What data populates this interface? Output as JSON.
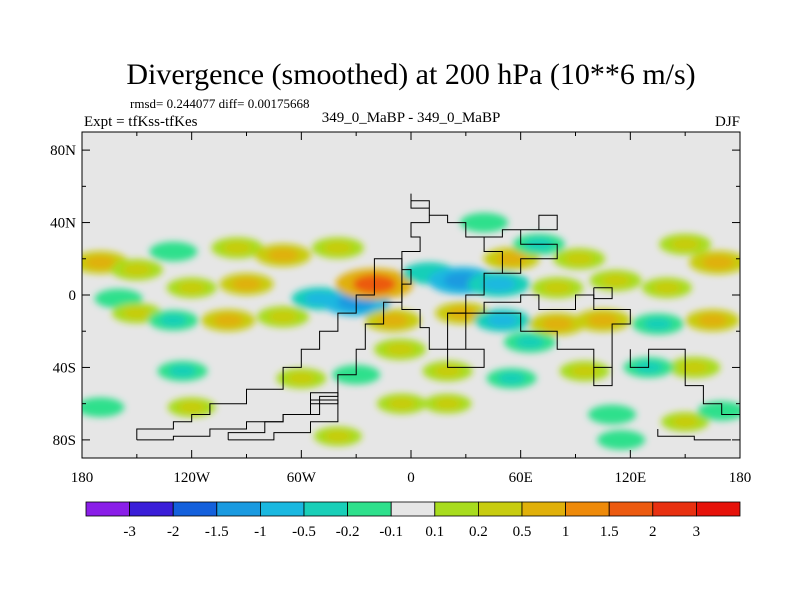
{
  "chart_data": {
    "type": "heatmap",
    "title": "Divergence (smoothed) at 200 hPa (10**6 m/s)",
    "stats": "rmsd= 0.244077 diff= 0.00175668",
    "experiment": "Expt = tfKss-tfKes",
    "subtitle": "349_0_MaBP - 349_0_MaBP",
    "season": "DJF",
    "x_ticks": [
      "180",
      "120W",
      "60W",
      "0",
      "60E",
      "120E",
      "180"
    ],
    "x_tick_values": [
      -180,
      -120,
      -60,
      0,
      60,
      120,
      180
    ],
    "y_ticks": [
      "80N",
      "40N",
      "0",
      "40S",
      "80S"
    ],
    "y_tick_values": [
      80,
      40,
      0,
      -40,
      -80
    ],
    "xlim": [
      -180,
      180
    ],
    "ylim": [
      -90,
      90
    ],
    "colorbar_labels": [
      "-3",
      "-2",
      "-1.5",
      "-1",
      "-0.5",
      "-0.2",
      "-0.1",
      "0.1",
      "0.2",
      "0.5",
      "1",
      "1.5",
      "2",
      "3"
    ],
    "colorbar_colors": [
      "#8a1ee8",
      "#3a1ed8",
      "#1460dc",
      "#1a9ae0",
      "#1ab8e0",
      "#19cfb8",
      "#2ee08c",
      "#e6e6e6",
      "#a8dc1e",
      "#c8cc10",
      "#e0b00a",
      "#ee8a0a",
      "#ec5a10",
      "#e83010",
      "#e6120a"
    ],
    "background_color": "#e6e6e6",
    "anomalies": [
      {
        "lon": -170,
        "lat": 18,
        "value": 0.6
      },
      {
        "lon": -150,
        "lat": 14,
        "value": 0.4
      },
      {
        "lon": -130,
        "lat": 24,
        "value": -0.2
      },
      {
        "lon": -95,
        "lat": 26,
        "value": 0.4
      },
      {
        "lon": -70,
        "lat": 22,
        "value": 0.6
      },
      {
        "lon": -40,
        "lat": 26,
        "value": 0.4
      },
      {
        "lon": -120,
        "lat": 4,
        "value": 0.3
      },
      {
        "lon": -90,
        "lat": 6,
        "value": 0.5
      },
      {
        "lon": -160,
        "lat": -2,
        "value": -0.2
      },
      {
        "lon": -150,
        "lat": -10,
        "value": 0.3
      },
      {
        "lon": -130,
        "lat": -14,
        "value": -0.3
      },
      {
        "lon": -100,
        "lat": -14,
        "value": 0.5
      },
      {
        "lon": -70,
        "lat": -12,
        "value": 0.4
      },
      {
        "lon": -50,
        "lat": -2,
        "value": -0.6
      },
      {
        "lon": -30,
        "lat": -4,
        "value": -1.2
      },
      {
        "lon": -20,
        "lat": 6,
        "value": 1.7
      },
      {
        "lon": -10,
        "lat": -14,
        "value": 0.6
      },
      {
        "lon": -6,
        "lat": -30,
        "value": 0.4
      },
      {
        "lon": 10,
        "lat": 12,
        "value": -0.5
      },
      {
        "lon": 28,
        "lat": 8,
        "value": -1.2
      },
      {
        "lon": 48,
        "lat": 6,
        "value": -0.9
      },
      {
        "lon": 55,
        "lat": 20,
        "value": 0.6
      },
      {
        "lon": 70,
        "lat": 28,
        "value": -0.4
      },
      {
        "lon": 92,
        "lat": 20,
        "value": 0.4
      },
      {
        "lon": 80,
        "lat": 4,
        "value": 0.4
      },
      {
        "lon": 112,
        "lat": 8,
        "value": 0.4
      },
      {
        "lon": 140,
        "lat": 4,
        "value": 0.3
      },
      {
        "lon": 168,
        "lat": 18,
        "value": 0.7
      },
      {
        "lon": 150,
        "lat": 28,
        "value": 0.4
      },
      {
        "lon": 28,
        "lat": -10,
        "value": 0.5
      },
      {
        "lon": 50,
        "lat": -14,
        "value": -0.6
      },
      {
        "lon": 65,
        "lat": -26,
        "value": -0.4
      },
      {
        "lon": 80,
        "lat": -16,
        "value": 0.6
      },
      {
        "lon": 105,
        "lat": -14,
        "value": 0.6
      },
      {
        "lon": 135,
        "lat": -16,
        "value": -0.4
      },
      {
        "lon": 165,
        "lat": -14,
        "value": 0.5
      },
      {
        "lon": 155,
        "lat": -40,
        "value": 0.4
      },
      {
        "lon": 130,
        "lat": -40,
        "value": -0.3
      },
      {
        "lon": 95,
        "lat": -42,
        "value": 0.3
      },
      {
        "lon": 55,
        "lat": -46,
        "value": -0.3
      },
      {
        "lon": 20,
        "lat": -42,
        "value": 0.3
      },
      {
        "lon": -125,
        "lat": -42,
        "value": -0.3
      },
      {
        "lon": -60,
        "lat": -46,
        "value": 0.3
      },
      {
        "lon": -30,
        "lat": -44,
        "value": -0.2
      },
      {
        "lon": -5,
        "lat": -60,
        "value": 0.3
      },
      {
        "lon": 20,
        "lat": -60,
        "value": 0.2
      },
      {
        "lon": -170,
        "lat": -62,
        "value": -0.2
      },
      {
        "lon": -120,
        "lat": -62,
        "value": 0.2
      },
      {
        "lon": 110,
        "lat": -66,
        "value": -0.2
      },
      {
        "lon": 150,
        "lat": -70,
        "value": 0.2
      },
      {
        "lon": 170,
        "lat": -64,
        "value": -0.2
      },
      {
        "lon": 40,
        "lat": 40,
        "value": -0.2
      },
      {
        "lon": -40,
        "lat": -78,
        "value": 0.2
      },
      {
        "lon": 115,
        "lat": -80,
        "value": -0.2
      }
    ],
    "continents": [
      [
        [
          -150,
          -80
        ],
        [
          -150,
          -74
        ],
        [
          -130,
          -74
        ],
        [
          -130,
          -70
        ],
        [
          -120,
          -70
        ],
        [
          -120,
          -66
        ],
        [
          -110,
          -66
        ],
        [
          -110,
          -60
        ],
        [
          -90,
          -60
        ],
        [
          -90,
          -52
        ],
        [
          -70,
          -52
        ],
        [
          -70,
          -40
        ],
        [
          -60,
          -40
        ],
        [
          -60,
          -30
        ],
        [
          -50,
          -30
        ],
        [
          -50,
          -20
        ],
        [
          -40,
          -20
        ],
        [
          -40,
          -10
        ],
        [
          -30,
          -10
        ],
        [
          -30,
          0
        ],
        [
          -20,
          0
        ],
        [
          -20,
          10
        ],
        [
          -20,
          20
        ],
        [
          -5,
          20
        ],
        [
          -5,
          -4
        ],
        [
          -15,
          -4
        ],
        [
          -15,
          -16
        ],
        [
          -25,
          -16
        ],
        [
          -25,
          -30
        ],
        [
          -30,
          -30
        ],
        [
          -30,
          -44
        ],
        [
          -40,
          -44
        ],
        [
          -40,
          -56
        ],
        [
          -50,
          -56
        ],
        [
          -50,
          -66
        ],
        [
          -70,
          -66
        ],
        [
          -70,
          -70
        ],
        [
          -90,
          -70
        ],
        [
          -90,
          -74
        ],
        [
          -110,
          -74
        ],
        [
          -110,
          -78
        ],
        [
          -130,
          -78
        ],
        [
          -130,
          -80
        ],
        [
          -150,
          -80
        ]
      ],
      [
        [
          -100,
          -80
        ],
        [
          -100,
          -76
        ],
        [
          -80,
          -76
        ],
        [
          -80,
          -70
        ],
        [
          -70,
          -70
        ],
        [
          -70,
          -66
        ],
        [
          -55,
          -66
        ],
        [
          -55,
          -58
        ],
        [
          -40,
          -58
        ],
        [
          -40,
          -70
        ],
        [
          -55,
          -70
        ],
        [
          -55,
          -76
        ],
        [
          -75,
          -76
        ],
        [
          -75,
          -80
        ],
        [
          -100,
          -80
        ]
      ],
      [
        [
          -55,
          -60
        ],
        [
          -55,
          -54
        ],
        [
          -40,
          -54
        ],
        [
          -40,
          -60
        ],
        [
          -55,
          -60
        ]
      ],
      [
        [
          0,
          56
        ],
        [
          0,
          52
        ],
        [
          10,
          52
        ],
        [
          10,
          44
        ],
        [
          20,
          44
        ],
        [
          20,
          40
        ],
        [
          30,
          40
        ],
        [
          30,
          32
        ],
        [
          40,
          32
        ],
        [
          40,
          24
        ],
        [
          50,
          24
        ],
        [
          50,
          12
        ],
        [
          40,
          12
        ],
        [
          40,
          0
        ],
        [
          30,
          0
        ],
        [
          30,
          -10
        ],
        [
          20,
          -10
        ],
        [
          20,
          -30
        ],
        [
          10,
          -30
        ],
        [
          10,
          -18
        ],
        [
          5,
          -18
        ],
        [
          5,
          -8
        ],
        [
          -5,
          -8
        ],
        [
          -5,
          6
        ],
        [
          0,
          6
        ],
        [
          0,
          14
        ],
        [
          -5,
          14
        ],
        [
          -5,
          24
        ],
        [
          5,
          24
        ],
        [
          5,
          32
        ],
        [
          0,
          32
        ],
        [
          0,
          40
        ],
        [
          10,
          40
        ],
        [
          10,
          48
        ],
        [
          0,
          48
        ],
        [
          0,
          56
        ]
      ],
      [
        [
          40,
          32
        ],
        [
          50,
          32
        ],
        [
          50,
          36
        ],
        [
          70,
          36
        ],
        [
          70,
          44
        ],
        [
          80,
          44
        ],
        [
          80,
          36
        ],
        [
          60,
          36
        ],
        [
          60,
          28
        ],
        [
          80,
          28
        ],
        [
          80,
          20
        ],
        [
          60,
          20
        ],
        [
          60,
          12
        ],
        [
          50,
          12
        ]
      ],
      [
        [
          30,
          -10
        ],
        [
          30,
          -30
        ],
        [
          20,
          -30
        ],
        [
          20,
          -40
        ],
        [
          40,
          -40
        ],
        [
          40,
          -30
        ],
        [
          30,
          -30
        ]
      ],
      [
        [
          20,
          -10
        ],
        [
          60,
          -10
        ],
        [
          60,
          -20
        ],
        [
          80,
          -20
        ],
        [
          80,
          -30
        ],
        [
          100,
          -30
        ],
        [
          100,
          -40
        ],
        [
          110,
          -40
        ],
        [
          110,
          -16
        ],
        [
          120,
          -16
        ],
        [
          120,
          -8
        ],
        [
          100,
          -8
        ],
        [
          100,
          0
        ],
        [
          90,
          0
        ],
        [
          90,
          -8
        ],
        [
          70,
          -8
        ],
        [
          70,
          0
        ],
        [
          60,
          0
        ],
        [
          60,
          -4
        ],
        [
          40,
          -4
        ],
        [
          40,
          -10
        ]
      ],
      [
        [
          100,
          -40
        ],
        [
          100,
          -50
        ],
        [
          110,
          -50
        ],
        [
          110,
          -40
        ]
      ],
      [
        [
          120,
          -30
        ],
        [
          120,
          -40
        ],
        [
          130,
          -40
        ],
        [
          130,
          -30
        ],
        [
          150,
          -30
        ],
        [
          150,
          -50
        ],
        [
          160,
          -50
        ],
        [
          160,
          -60
        ],
        [
          170,
          -60
        ],
        [
          170,
          -66
        ],
        [
          180,
          -66
        ]
      ],
      [
        [
          135,
          -74
        ],
        [
          135,
          -78
        ],
        [
          155,
          -78
        ],
        [
          155,
          -80
        ],
        [
          175,
          -80
        ]
      ],
      [
        [
          100,
          4
        ],
        [
          110,
          4
        ],
        [
          110,
          -2
        ],
        [
          100,
          -2
        ],
        [
          100,
          4
        ]
      ]
    ]
  }
}
